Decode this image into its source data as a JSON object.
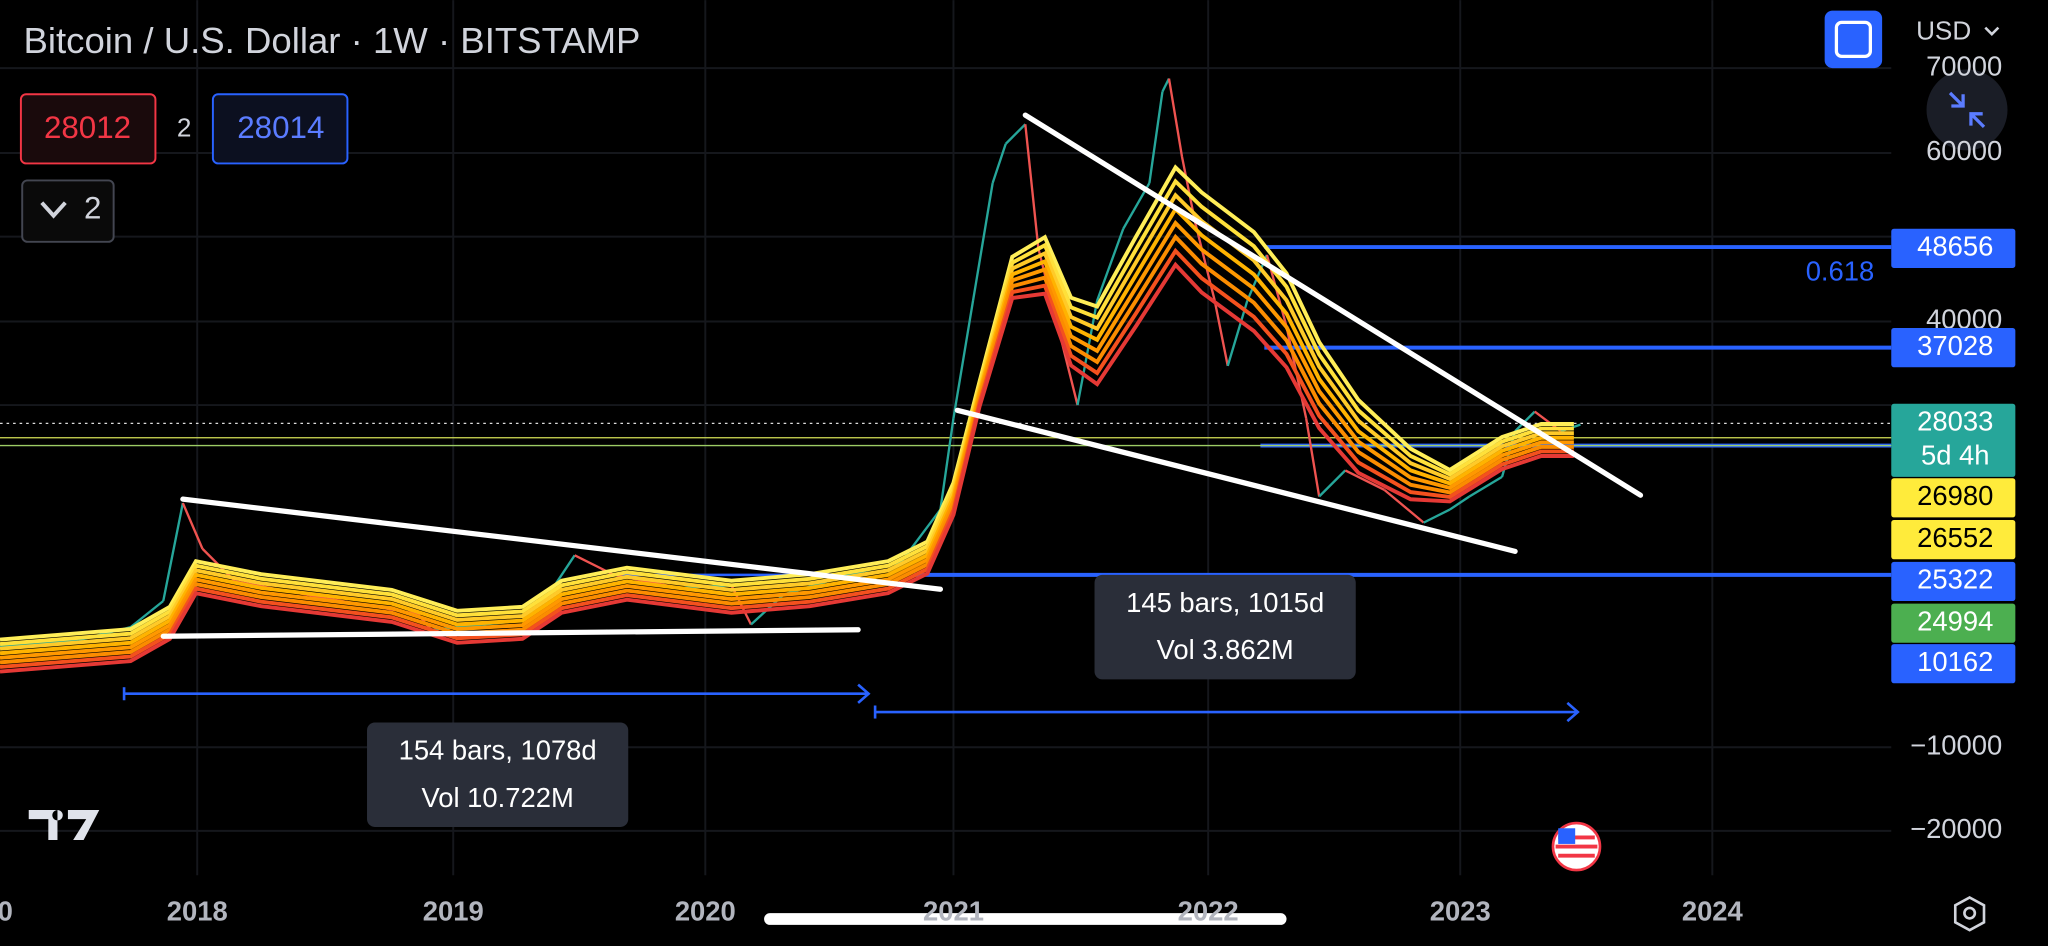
{
  "header": {
    "title": "Bitcoin / U.S. Dollar · 1W · BITSTAMP",
    "currency": "USD"
  },
  "order_panel": {
    "sell": "28012",
    "spread": "2",
    "buy": "28014"
  },
  "collapse_button": {
    "label": "2"
  },
  "price_axis": {
    "labels": [
      "70000",
      "60000",
      "40000",
      "−10000",
      "−20000"
    ]
  },
  "price_labels": [
    {
      "text": "48656",
      "color": "#2962ff"
    },
    {
      "text": "37028",
      "color": "#2962ff"
    },
    {
      "text": "28033",
      "sub": "5d 4h",
      "color": "#26a69a"
    },
    {
      "text": "26980",
      "color": "#ffeb3b"
    },
    {
      "text": "26552",
      "color": "#ffeb3b"
    },
    {
      "text": "25322",
      "color": "#2962ff"
    },
    {
      "text": "24994",
      "color": "#4caf50"
    },
    {
      "text": "10162",
      "color": "#2962ff"
    }
  ],
  "fib_label": "0.618",
  "time_axis": {
    "labels": [
      "0",
      "2018",
      "2019",
      "2020",
      "2021",
      "2022",
      "2023",
      "2024"
    ]
  },
  "measurements": [
    {
      "bars": "145 bars, 1015d",
      "volume": "Vol 3.862M"
    },
    {
      "bars": "154 bars, 1078d",
      "volume": "Vol 10.722M"
    }
  ]
}
